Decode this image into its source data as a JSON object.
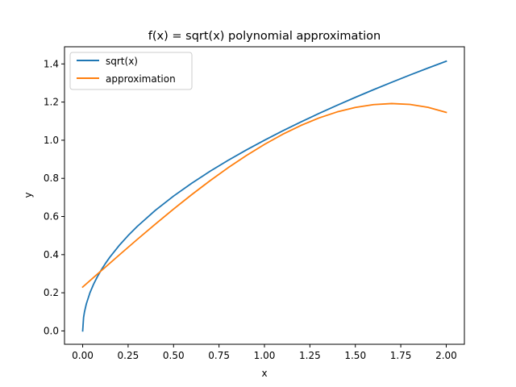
{
  "chart_data": {
    "type": "line",
    "title": "f(x) = sqrt(x) polynomial approximation",
    "xlabel": "x",
    "ylabel": "y",
    "xlim": [
      -0.1,
      2.1
    ],
    "ylim": [
      -0.07,
      1.49
    ],
    "xticks": [
      0.0,
      0.25,
      0.5,
      0.75,
      1.0,
      1.25,
      1.5,
      1.75,
      2.0
    ],
    "xtick_labels": [
      "0.00",
      "0.25",
      "0.50",
      "0.75",
      "1.00",
      "1.25",
      "1.50",
      "1.75",
      "2.00"
    ],
    "yticks": [
      0.0,
      0.2,
      0.4,
      0.6,
      0.8,
      1.0,
      1.2,
      1.4
    ],
    "ytick_labels": [
      "0.0",
      "0.2",
      "0.4",
      "0.6",
      "0.8",
      "1.0",
      "1.2",
      "1.4"
    ],
    "grid": false,
    "legend_position": "top-left",
    "series": [
      {
        "name": "sqrt(x)",
        "color": "#1f77b4",
        "x": [
          0.0,
          0.005,
          0.01,
          0.02,
          0.04,
          0.06,
          0.08,
          0.1,
          0.125,
          0.15,
          0.2,
          0.25,
          0.3,
          0.4,
          0.5,
          0.6,
          0.7,
          0.8,
          0.9,
          1.0,
          1.1,
          1.2,
          1.3,
          1.4,
          1.5,
          1.6,
          1.7,
          1.8,
          1.9,
          2.0
        ],
        "y": [
          0.0,
          0.0707,
          0.1,
          0.1414,
          0.2,
          0.2449,
          0.2828,
          0.3162,
          0.3536,
          0.3873,
          0.4472,
          0.5,
          0.5477,
          0.6325,
          0.7071,
          0.7746,
          0.8367,
          0.8944,
          0.9487,
          1.0,
          1.0488,
          1.0954,
          1.1402,
          1.1832,
          1.2247,
          1.2649,
          1.3038,
          1.3416,
          1.3784,
          1.4142
        ]
      },
      {
        "name": "approximation",
        "color": "#ff7f0e",
        "x": [
          0.0,
          0.1,
          0.2,
          0.3,
          0.4,
          0.5,
          0.6,
          0.7,
          0.8,
          0.9,
          1.0,
          1.1,
          1.2,
          1.3,
          1.4,
          1.5,
          1.6,
          1.7,
          1.8,
          1.9,
          2.0
        ],
        "y": [
          0.23,
          0.3138,
          0.3972,
          0.4796,
          0.5604,
          0.639,
          0.7148,
          0.7872,
          0.8556,
          0.9194,
          0.978,
          1.0308,
          1.0772,
          1.1166,
          1.1484,
          1.172,
          1.1868,
          1.1922,
          1.1876,
          1.1724,
          1.146
        ]
      }
    ]
  }
}
